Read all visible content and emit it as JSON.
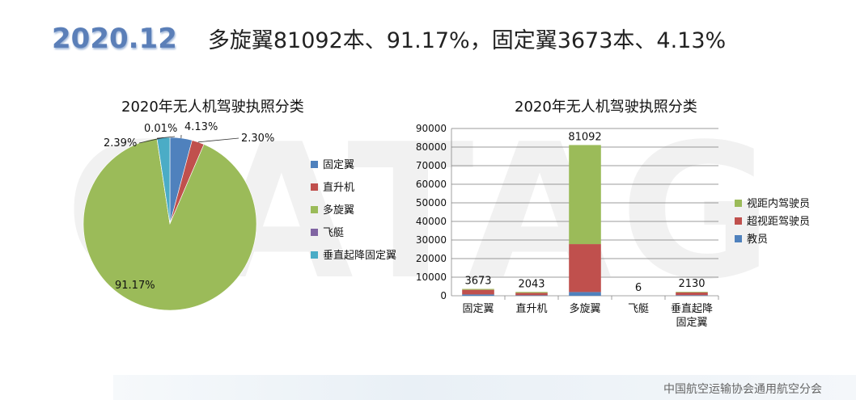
{
  "header": {
    "year": "2020.12",
    "headline": "多旋翼81092本、91.17%，固定翼3673本、4.13%"
  },
  "footer": {
    "text": "中国航空运输协会通用航空分会"
  },
  "watermark": {
    "text": "CATAG"
  },
  "chart_data": [
    {
      "type": "pie",
      "title": "2020年无人机驾驶执照分类",
      "slices": [
        {
          "name": "固定翼",
          "value": 4.13,
          "label": "4.13%",
          "color": "#4f81bd"
        },
        {
          "name": "直升机",
          "value": 2.3,
          "label": "2.30%",
          "color": "#c0504d"
        },
        {
          "name": "多旋翼",
          "value": 91.17,
          "label": "91.17%",
          "color": "#9bbb59"
        },
        {
          "name": "飞艇",
          "value": 0.01,
          "label": "0.01%",
          "color": "#8064a2"
        },
        {
          "name": "垂直起降固定翼",
          "value": 2.39,
          "label": "2.39%",
          "color": "#4bacc6"
        }
      ],
      "legend": "right"
    },
    {
      "type": "bar",
      "stacked": true,
      "title": "2020年无人机驾驶执照分类",
      "categories": [
        "固定翼",
        "直升机",
        "多旋翼",
        "飞艇",
        "垂直起降固定翼"
      ],
      "category_lines": [
        [
          "固定翼"
        ],
        [
          "直升机"
        ],
        [
          "多旋翼"
        ],
        [
          "飞艇"
        ],
        [
          "垂直起降",
          "固定翼"
        ]
      ],
      "totals": [
        3673,
        2043,
        81092,
        6,
        2130
      ],
      "series": [
        {
          "name": "教员",
          "color": "#4f81bd",
          "values": [
            700,
            250,
            2000,
            1,
            300
          ]
        },
        {
          "name": "超视距驾驶员",
          "color": "#c0504d",
          "values": [
            2500,
            1300,
            25800,
            4,
            1500
          ]
        },
        {
          "name": "视距内驾驶员",
          "color": "#9bbb59",
          "values": [
            473,
            493,
            53292,
            1,
            330
          ]
        }
      ],
      "legend_order": [
        "视距内驾驶员",
        "超视距驾驶员",
        "教员"
      ],
      "ylim": [
        0,
        90000
      ],
      "yticks": [
        0,
        10000,
        20000,
        30000,
        40000,
        50000,
        60000,
        70000,
        80000,
        90000
      ],
      "grid": true,
      "legend": "right"
    }
  ]
}
